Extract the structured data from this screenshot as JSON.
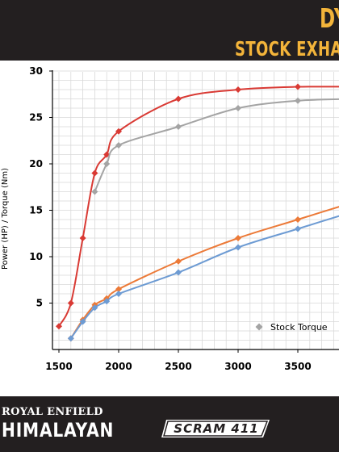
{
  "header": {
    "title_fragment": "DY",
    "subtitle_fragment": "STOCK EXHA"
  },
  "footer": {
    "brand_small": "ROYAL ENFIELD",
    "brand_large": "HIMALAYAN",
    "brand_second": "SCRAM 411"
  },
  "colors": {
    "band": "#231f20",
    "accent": "#f3b43a",
    "grid": "#d9d9d9",
    "axis": "#000000"
  },
  "chart_data": {
    "type": "line",
    "title": "",
    "xlabel": "",
    "ylabel": "Power (HP) / Torque (Nm)",
    "xlim": [
      1500,
      4000
    ],
    "ylim": [
      0,
      30
    ],
    "xticks": [
      1500,
      2000,
      2500,
      3000,
      3500
    ],
    "yticks": [
      5,
      10,
      15,
      20,
      25,
      30
    ],
    "grid": true,
    "legend_position": "bottom-right",
    "legend_visible": [
      "Stock Torque"
    ],
    "series": [
      {
        "name": "",
        "color": "#d93a34",
        "x": [
          1500,
          1600,
          1700,
          1800,
          1900,
          2000,
          2500,
          3000,
          3500
        ],
        "y": [
          2.5,
          5.0,
          12.0,
          19.0,
          21.0,
          23.5,
          27.0,
          28.0,
          28.3
        ],
        "extends_to": [
          4000,
          28.3
        ]
      },
      {
        "name": "Stock Torque",
        "color": "#a4a4a4",
        "x": [
          1800,
          1900,
          2000,
          2500,
          3000,
          3500
        ],
        "y": [
          17.0,
          20.0,
          22.0,
          24.0,
          26.0,
          26.8
        ],
        "extends_to": [
          4000,
          27.0
        ]
      },
      {
        "name": "",
        "color": "#ec7a38",
        "x": [
          1600,
          1700,
          1800,
          1900,
          2000,
          2500,
          3000,
          3500
        ],
        "y": [
          1.2,
          3.2,
          4.8,
          5.5,
          6.5,
          9.5,
          12.0,
          14.0
        ],
        "extends_to": [
          4000,
          16.0
        ]
      },
      {
        "name": "",
        "color": "#6d9bd3",
        "x": [
          1600,
          1700,
          1800,
          1900,
          2000,
          2500,
          3000,
          3500
        ],
        "y": [
          1.2,
          3.0,
          4.5,
          5.2,
          6.0,
          8.3,
          11.0,
          13.0
        ],
        "extends_to": [
          4000,
          15.0
        ]
      }
    ]
  }
}
